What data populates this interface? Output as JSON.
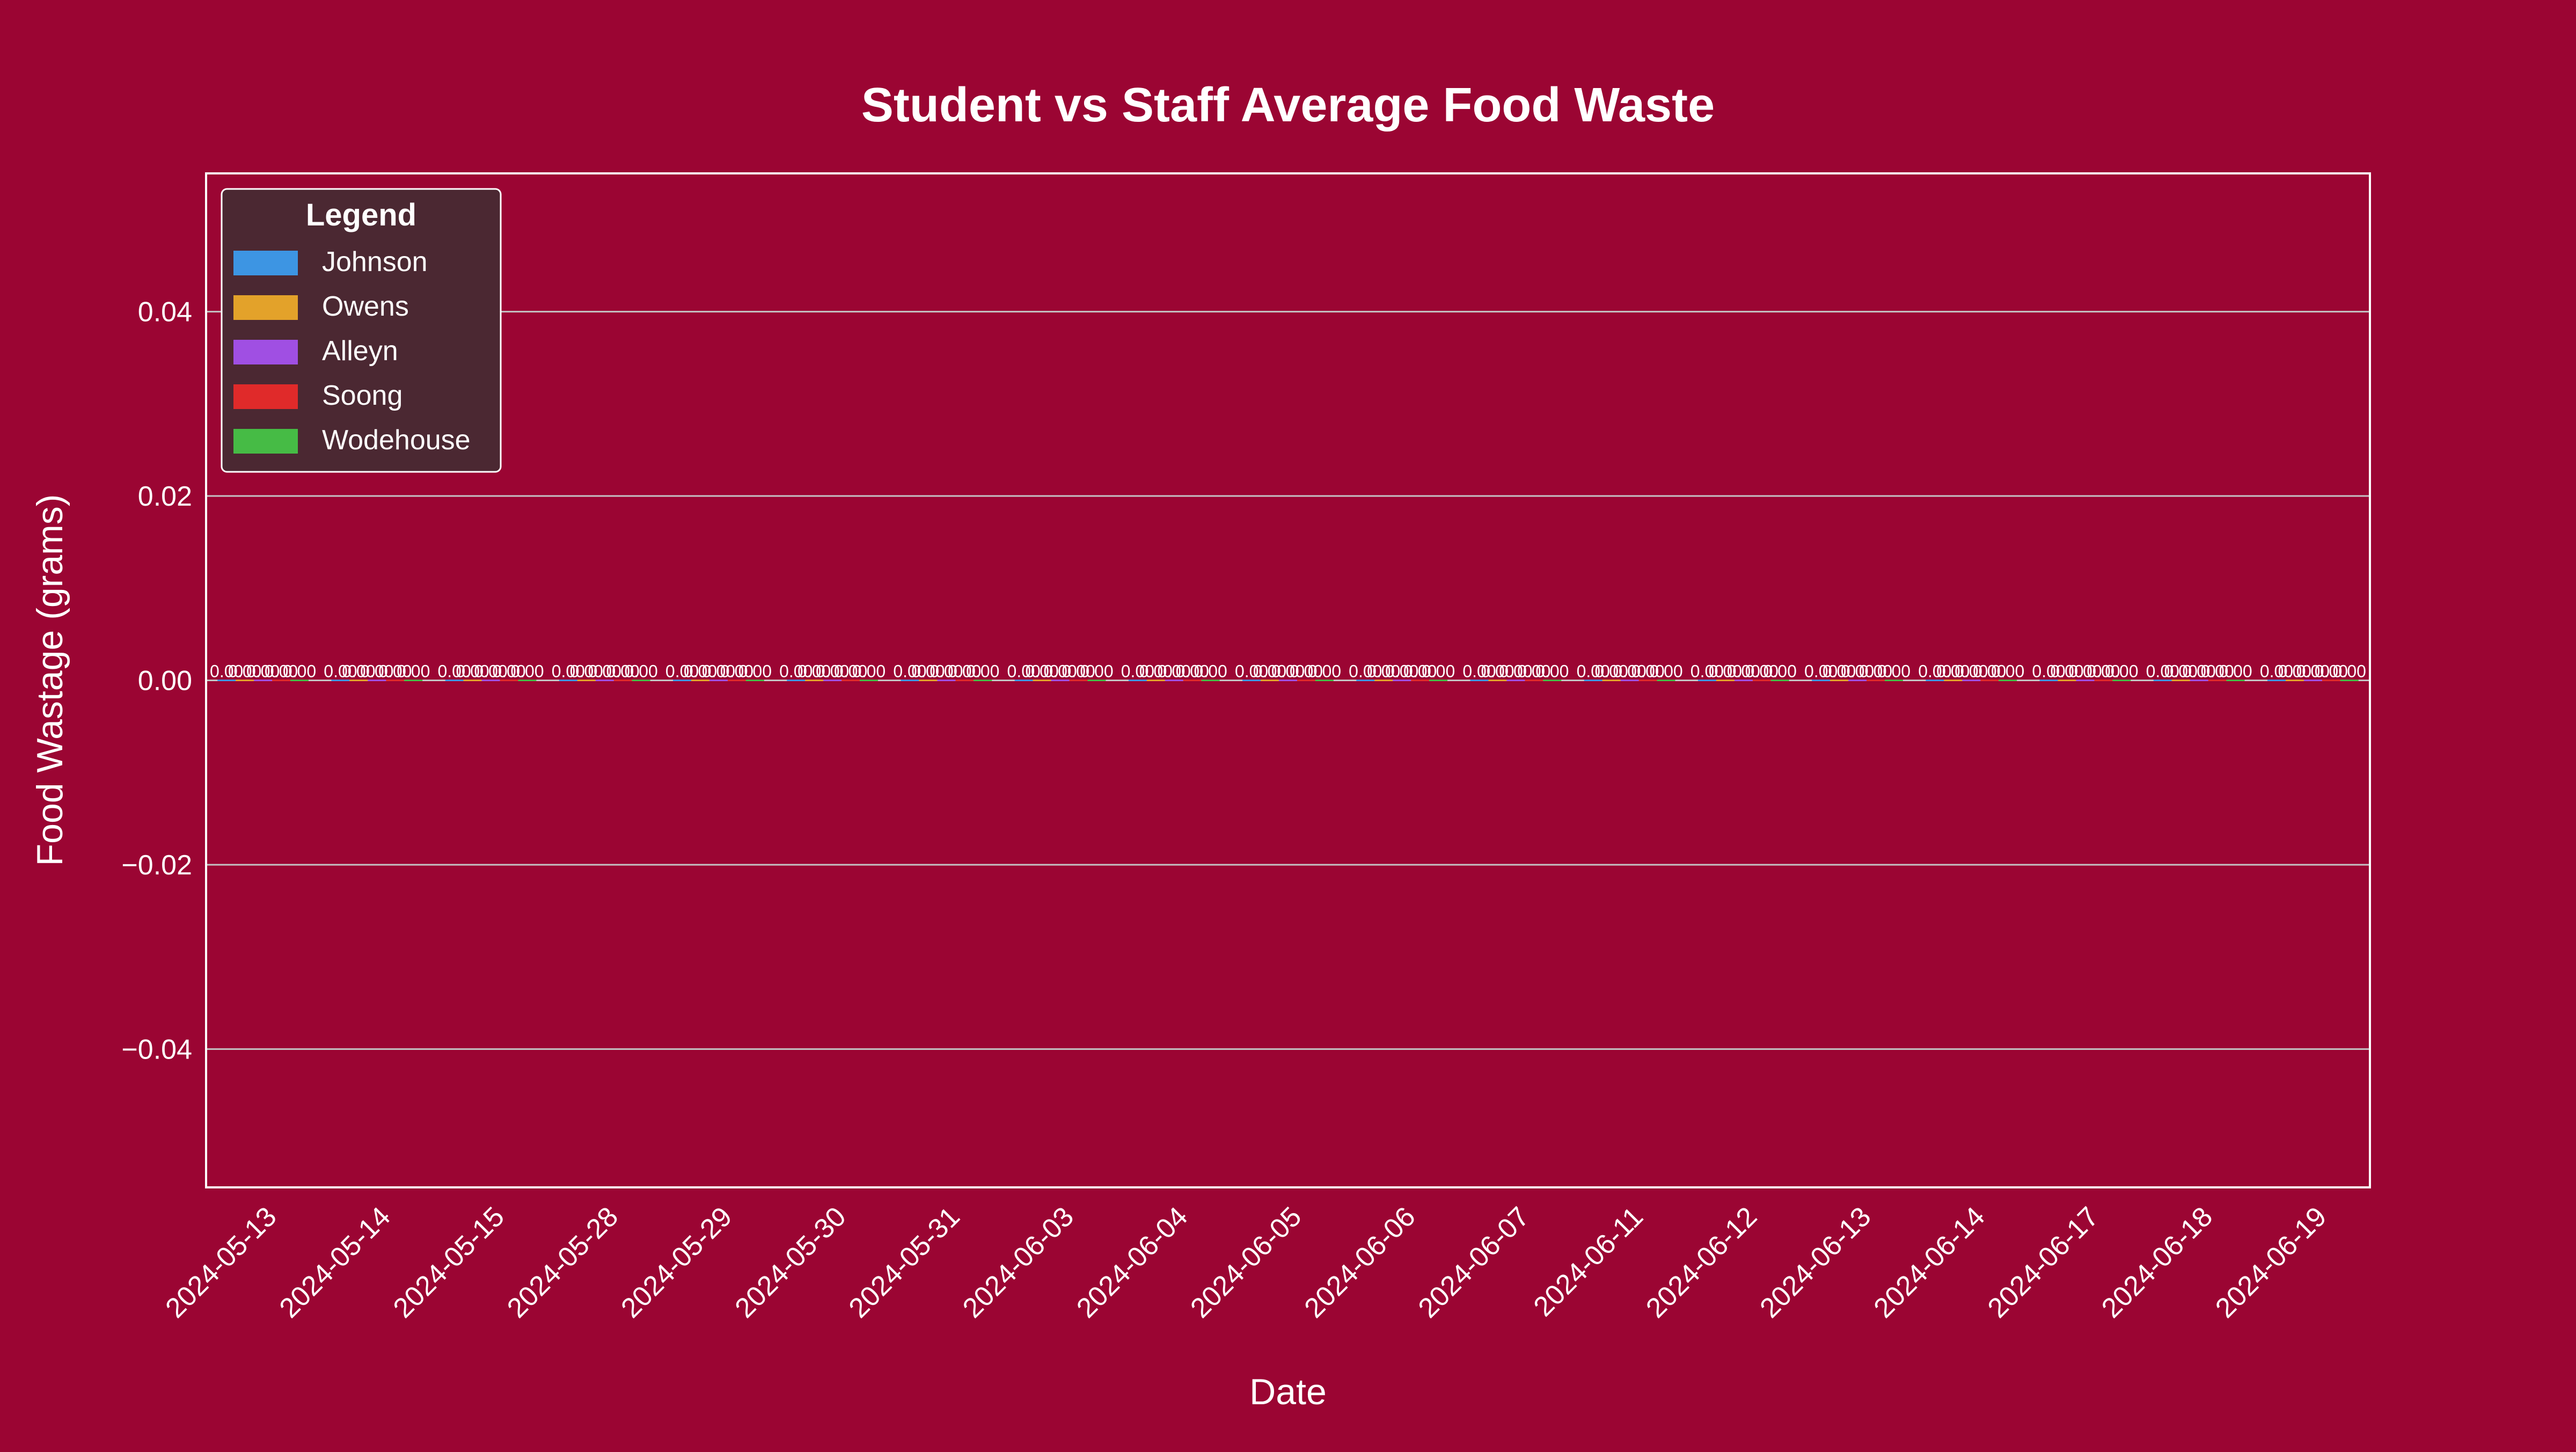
{
  "chart_data": {
    "type": "bar",
    "title": "Student vs Staff Average Food Waste",
    "xlabel": "Date",
    "ylabel": "Food Wastage (grams)",
    "ylim": [
      -0.055,
      0.055
    ],
    "yticks": [
      -0.04,
      -0.02,
      0.0,
      0.02,
      0.04
    ],
    "ytick_labels": [
      "−0.04",
      "−0.02",
      "0.00",
      "0.02",
      "0.04"
    ],
    "grid": "horizontal",
    "legend": {
      "title": "Legend",
      "position": "top-left"
    },
    "categories": [
      "2024-05-13",
      "2024-05-14",
      "2024-05-15",
      "2024-05-28",
      "2024-05-29",
      "2024-05-30",
      "2024-05-31",
      "2024-06-03",
      "2024-06-04",
      "2024-06-05",
      "2024-06-06",
      "2024-06-07",
      "2024-06-11",
      "2024-06-12",
      "2024-06-13",
      "2024-06-14",
      "2024-06-17",
      "2024-06-18",
      "2024-06-19"
    ],
    "series": [
      {
        "name": "Johnson",
        "color": "#3d95e3",
        "values": [
          0,
          0,
          0,
          0,
          0,
          0,
          0,
          0,
          0,
          0,
          0,
          0,
          0,
          0,
          0,
          0,
          0,
          0,
          0
        ]
      },
      {
        "name": "Owens",
        "color": "#e3a22a",
        "values": [
          0,
          0,
          0,
          0,
          0,
          0,
          0,
          0,
          0,
          0,
          0,
          0,
          0,
          0,
          0,
          0,
          0,
          0,
          0
        ]
      },
      {
        "name": "Alleyn",
        "color": "#a04fe3",
        "values": [
          0,
          0,
          0,
          0,
          0,
          0,
          0,
          0,
          0,
          0,
          0,
          0,
          0,
          0,
          0,
          0,
          0,
          0,
          0
        ]
      },
      {
        "name": "Soong",
        "color": "#e02a2a",
        "values": [
          0,
          0,
          0,
          0,
          0,
          0,
          0,
          0,
          0,
          0,
          0,
          0,
          0,
          0,
          0,
          0,
          0,
          0,
          0
        ]
      },
      {
        "name": "Wodehouse",
        "color": "#46bb45",
        "values": [
          0,
          0,
          0,
          0,
          0,
          0,
          0,
          0,
          0,
          0,
          0,
          0,
          0,
          0,
          0,
          0,
          0,
          0,
          0
        ]
      }
    ],
    "data_label_text": "0.00"
  },
  "colors": {
    "background": "#9b0533",
    "legend_background": "#4b2832",
    "frame": "#ffffff",
    "grid": "#c4c4c4",
    "text": "#ffffff"
  }
}
